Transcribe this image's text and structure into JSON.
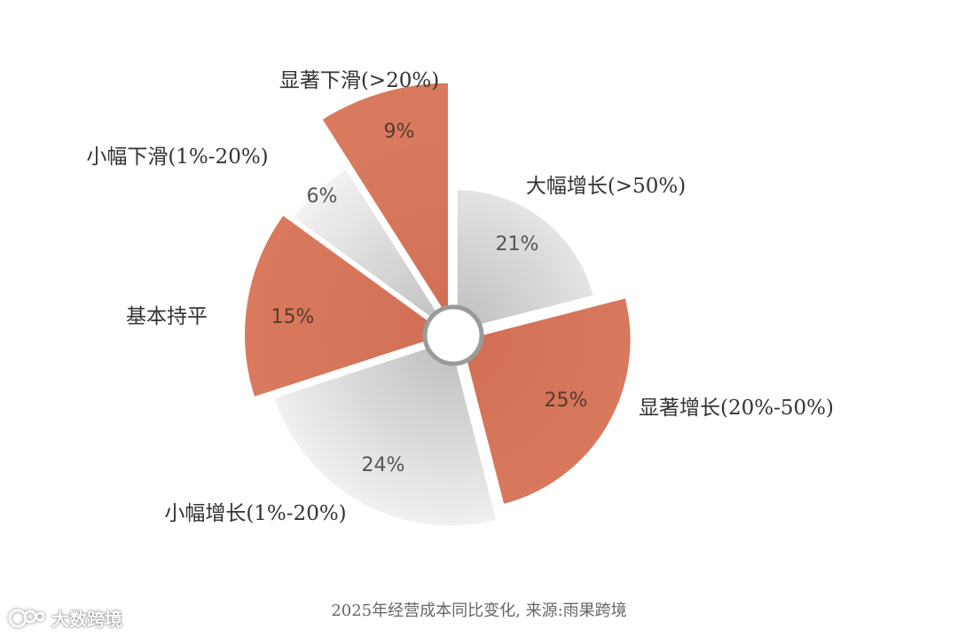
{
  "chart_data": {
    "type": "pie",
    "variant": "exploded-rose",
    "categories": [
      "大幅增长(>50%)",
      "显著增长(20%-50%)",
      "小幅增长(1%-20%)",
      "基本持平",
      "小幅下滑(1%-20%)",
      "显著下滑(>20%)"
    ],
    "values": [
      21,
      25,
      24,
      15,
      6,
      9
    ],
    "value_labels": [
      "21%",
      "25%",
      "24%",
      "15%",
      "6%",
      "9%"
    ],
    "colors": [
      "#e4e4e4",
      "#d6765b",
      "#e4e4e4",
      "#d6765b",
      "#e4e4e4",
      "#d6765b"
    ]
  },
  "caption": "2025年经营成本同比变化, 来源:雨果跨境",
  "watermark": {
    "icon": "chat-bubble-logo-icon",
    "text": "大数跨境"
  }
}
